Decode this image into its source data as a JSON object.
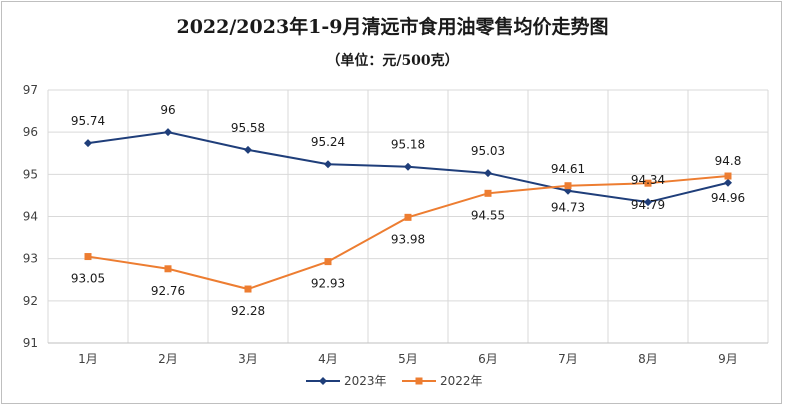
{
  "title": "2022/2023年1-9月清远市食用油零售均价走势图",
  "subtitle": "（单位：元/500克）",
  "chart_data": {
    "type": "line",
    "categories": [
      "1月",
      "2月",
      "3月",
      "4月",
      "5月",
      "6月",
      "7月",
      "8月",
      "9月"
    ],
    "ylim": [
      91,
      97
    ],
    "yticks": [
      91,
      92,
      93,
      94,
      95,
      96,
      97
    ],
    "grid": true,
    "legend_position": "bottom",
    "series": [
      {
        "name": "2023年",
        "color": "#1f3e7a",
        "marker": "diamond",
        "values": [
          95.74,
          96,
          95.58,
          95.24,
          95.18,
          95.03,
          94.61,
          94.34,
          94.8
        ],
        "labels": [
          "95.74",
          "96",
          "95.58",
          "95.24",
          "95.18",
          "95.03",
          "94.61",
          "94.34",
          "94.8"
        ]
      },
      {
        "name": "2022年",
        "color": "#ed7d31",
        "marker": "square",
        "values": [
          93.05,
          92.76,
          92.28,
          92.93,
          93.98,
          94.55,
          94.73,
          94.79,
          94.96
        ],
        "labels": [
          "93.05",
          "92.76",
          "92.28",
          "92.93",
          "93.98",
          "94.55",
          "94.73",
          "94.79",
          "94.96"
        ]
      }
    ]
  }
}
